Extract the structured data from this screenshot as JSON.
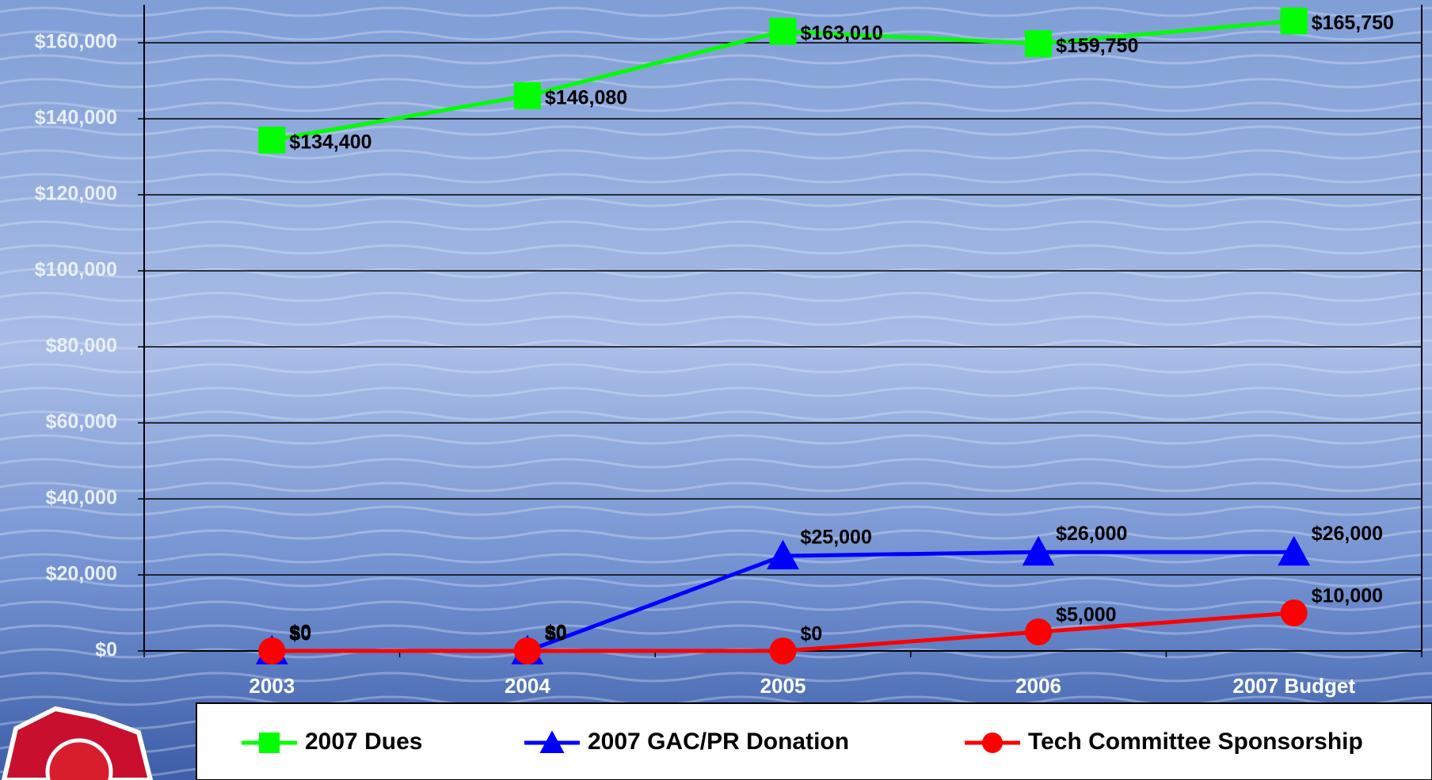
{
  "chart_data": {
    "type": "line",
    "categories": [
      "2003",
      "2004",
      "2005",
      "2006",
      "2007 Budget"
    ],
    "series": [
      {
        "name": "2007 Dues",
        "color": "#00ff00",
        "marker": "square",
        "values": [
          134400,
          146080,
          163010,
          159750,
          165750
        ],
        "value_labels": [
          "$134,400",
          "$146,080",
          "$163,010",
          "$159,750",
          "$165,750"
        ]
      },
      {
        "name": "2007 GAC/PR Donation",
        "color": "#0000ff",
        "marker": "triangle",
        "values": [
          0,
          0,
          25000,
          26000,
          26000
        ],
        "value_labels": [
          "$0",
          "$0",
          "$25,000",
          "$26,000",
          "$26,000"
        ]
      },
      {
        "name": "Tech Committee Sponsorship",
        "color": "#ff0000",
        "marker": "circle",
        "values": [
          0,
          0,
          0,
          5000,
          10000
        ],
        "value_labels": [
          "$0",
          "$0",
          "$0",
          "$5,000",
          "$10,000"
        ]
      }
    ],
    "ylim": [
      0,
      170000
    ],
    "yticks": [
      {
        "value": 0,
        "label": "$0"
      },
      {
        "value": 20000,
        "label": "$20,000"
      },
      {
        "value": 40000,
        "label": "$40,000"
      },
      {
        "value": 60000,
        "label": "$60,000"
      },
      {
        "value": 80000,
        "label": "$80,000"
      },
      {
        "value": 100000,
        "label": "$100,000"
      },
      {
        "value": 120000,
        "label": "$120,000"
      },
      {
        "value": 140000,
        "label": "$140,000"
      },
      {
        "value": 160000,
        "label": "$160,000"
      }
    ],
    "grid": true,
    "legend": "bottom"
  }
}
